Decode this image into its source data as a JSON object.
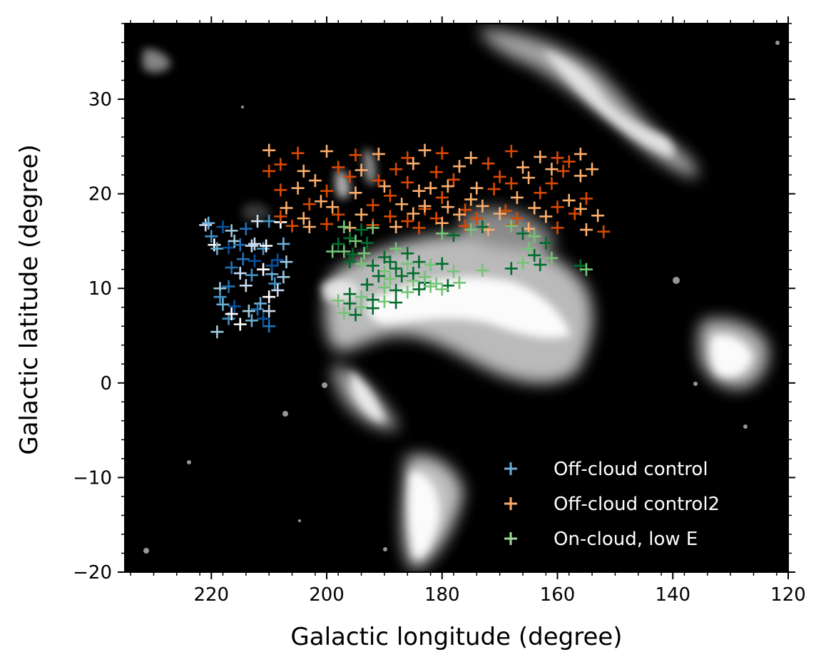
{
  "chart_data": {
    "type": "scatter",
    "title": "",
    "xlabel": "Galactic longitude (degree)",
    "ylabel": "Galactic latitude (degree)",
    "xlim": [
      235,
      120
    ],
    "ylim": [
      -20,
      38
    ],
    "x_inverted": true,
    "xticks": [
      220,
      200,
      180,
      160,
      140,
      120
    ],
    "yticks": [
      -20,
      -10,
      0,
      10,
      20,
      30
    ],
    "grid": false,
    "background": "grayscale dust-map image on black",
    "legend_position": "bottom-right",
    "colors": {
      "off_cloud_control": "#6baed6",
      "off_cloud_control2": "#fd8d3c",
      "on_cloud_low_e": "#74c476"
    },
    "series": [
      {
        "name": "Off-cloud control",
        "marker": "plus",
        "palette": [
          "#c6dbef",
          "#9ecae1",
          "#6baed6",
          "#4292c6",
          "#2171b5",
          "#08519c",
          "#ffffff"
        ],
        "points": [
          [
            221,
            16.7
          ],
          [
            220,
            15.5
          ],
          [
            219.5,
            14.6
          ],
          [
            220.5,
            16.9
          ],
          [
            218,
            16.5
          ],
          [
            216.5,
            16.1
          ],
          [
            214,
            16.3
          ],
          [
            212,
            17.1
          ],
          [
            210,
            17.1
          ],
          [
            208,
            17
          ],
          [
            219,
            14.2
          ],
          [
            217,
            14.3
          ],
          [
            216,
            15
          ],
          [
            215,
            14.6
          ],
          [
            213,
            14.5
          ],
          [
            211,
            14.2
          ],
          [
            210.5,
            14.5
          ],
          [
            207.5,
            14.7
          ],
          [
            208.5,
            13
          ],
          [
            207,
            12.8
          ],
          [
            216.5,
            12.2
          ],
          [
            215,
            11.6
          ],
          [
            213,
            11.4
          ],
          [
            211,
            12
          ],
          [
            209.5,
            11.5
          ],
          [
            212.5,
            12.9
          ],
          [
            218.5,
            10
          ],
          [
            217,
            10.2
          ],
          [
            214,
            10.3
          ],
          [
            209,
            10.5
          ],
          [
            210,
            9.1
          ],
          [
            218,
            8.3
          ],
          [
            216,
            8.1
          ],
          [
            213.5,
            7.6
          ],
          [
            212,
            7.8
          ],
          [
            210,
            7.6
          ],
          [
            217,
            6.8
          ],
          [
            215,
            6.2
          ],
          [
            213,
            6.6
          ],
          [
            211,
            6.8
          ],
          [
            219,
            5.4
          ],
          [
            210,
            6
          ],
          [
            208.5,
            9.8
          ],
          [
            218.5,
            9.1
          ],
          [
            216.5,
            7.3
          ],
          [
            211.5,
            8.4
          ],
          [
            209.5,
            12.4
          ],
          [
            207.5,
            11.2
          ],
          [
            214.5,
            13.1
          ],
          [
            212.5,
            14.7
          ]
        ]
      },
      {
        "name": "Off-cloud control2",
        "marker": "plus",
        "palette": [
          "#fdd0a2",
          "#fdae6b",
          "#fd8d3c",
          "#f16913",
          "#d94801",
          "#ffffff"
        ],
        "points": [
          [
            210,
            24.6
          ],
          [
            205,
            24.3
          ],
          [
            200,
            24.5
          ],
          [
            195,
            24.1
          ],
          [
            191,
            24.2
          ],
          [
            186,
            23.8
          ],
          [
            183,
            24.6
          ],
          [
            180,
            24.3
          ],
          [
            175,
            23.8
          ],
          [
            168,
            24.5
          ],
          [
            163,
            23.9
          ],
          [
            160,
            23.8
          ],
          [
            156,
            24.2
          ],
          [
            208,
            23.1
          ],
          [
            204,
            22.4
          ],
          [
            198,
            22.8
          ],
          [
            194,
            22.5
          ],
          [
            188,
            22.6
          ],
          [
            185,
            23.2
          ],
          [
            181,
            22.3
          ],
          [
            177,
            22.9
          ],
          [
            172,
            23.2
          ],
          [
            166,
            22.8
          ],
          [
            158,
            23.4
          ],
          [
            154,
            22.6
          ],
          [
            210,
            22.4
          ],
          [
            202,
            21.4
          ],
          [
            196,
            21.8
          ],
          [
            190,
            20.8
          ],
          [
            186,
            21.2
          ],
          [
            182,
            20.6
          ],
          [
            178,
            21.5
          ],
          [
            174,
            20.6
          ],
          [
            170,
            21.8
          ],
          [
            165,
            21.7
          ],
          [
            161,
            21.1
          ],
          [
            156,
            21.9
          ],
          [
            208,
            20.4
          ],
          [
            205,
            20.6
          ],
          [
            200,
            20.3
          ],
          [
            195,
            20.1
          ],
          [
            189,
            19.8
          ],
          [
            184,
            20.3
          ],
          [
            180,
            19.6
          ],
          [
            175,
            19.4
          ],
          [
            171,
            20.5
          ],
          [
            167,
            19.6
          ],
          [
            163,
            20.1
          ],
          [
            158,
            19.3
          ],
          [
            155,
            19.5
          ],
          [
            207,
            18.5
          ],
          [
            203,
            18.9
          ],
          [
            199,
            18.6
          ],
          [
            192,
            18.8
          ],
          [
            187,
            18.9
          ],
          [
            183,
            18.4
          ],
          [
            179,
            18.6
          ],
          [
            176,
            18.3
          ],
          [
            173,
            18.7
          ],
          [
            169,
            18.2
          ],
          [
            164,
            18.5
          ],
          [
            160,
            18.6
          ],
          [
            156,
            18.4
          ],
          [
            208,
            17.6
          ],
          [
            204,
            17.4
          ],
          [
            198,
            17.8
          ],
          [
            194,
            17.8
          ],
          [
            189,
            17.6
          ],
          [
            185,
            17.9
          ],
          [
            181,
            17.4
          ],
          [
            177,
            17.8
          ],
          [
            174,
            17.4
          ],
          [
            170,
            17.9
          ],
          [
            167,
            17.4
          ],
          [
            162,
            17.6
          ],
          [
            157,
            17.9
          ],
          [
            153,
            17.7
          ],
          [
            206,
            16.6
          ],
          [
            203,
            16.5
          ],
          [
            200,
            16.8
          ],
          [
            196,
            16.4
          ],
          [
            192,
            16.7
          ],
          [
            188,
            16.5
          ],
          [
            184,
            16.4
          ],
          [
            180,
            16.9
          ],
          [
            176,
            16.6
          ],
          [
            172,
            16.2
          ],
          [
            168,
            16.7
          ],
          [
            165,
            16.3
          ],
          [
            160,
            16.4
          ],
          [
            155,
            16.2
          ],
          [
            152,
            16
          ],
          [
            183,
            18.7
          ],
          [
            186,
            17.1
          ],
          [
            179,
            20.8
          ],
          [
            168,
            21.1
          ],
          [
            161,
            22.6
          ],
          [
            159,
            22.4
          ],
          [
            201,
            19.2
          ],
          [
            191,
            21.4
          ]
        ]
      },
      {
        "name": "On-cloud, low E",
        "marker": "plus",
        "palette": [
          "#c7e9c0",
          "#a1d99b",
          "#74c476",
          "#41ab5d",
          "#238b45",
          "#006d2c"
        ],
        "points": [
          [
            197,
            16.5
          ],
          [
            194,
            16.2
          ],
          [
            192,
            16.4
          ],
          [
            196,
            15.3
          ],
          [
            195,
            15
          ],
          [
            193,
            14.8
          ],
          [
            197,
            13.9
          ],
          [
            195.5,
            13.6
          ],
          [
            193.5,
            13.7
          ],
          [
            196,
            12.8
          ],
          [
            194,
            12.6
          ],
          [
            192,
            12.4
          ],
          [
            190,
            11.8
          ],
          [
            188,
            12.1
          ],
          [
            186,
            12.6
          ],
          [
            184,
            12.8
          ],
          [
            182,
            12.5
          ],
          [
            180,
            12.6
          ],
          [
            178,
            11.8
          ],
          [
            191,
            11.3
          ],
          [
            189,
            11
          ],
          [
            187,
            11.3
          ],
          [
            185,
            10.8
          ],
          [
            183,
            10.6
          ],
          [
            181,
            10.5
          ],
          [
            179,
            10.3
          ],
          [
            177,
            10.6
          ],
          [
            193,
            10.4
          ],
          [
            190,
            10.1
          ],
          [
            188,
            9.8
          ],
          [
            186,
            9.6
          ],
          [
            184,
            9.9
          ],
          [
            182,
            10.2
          ],
          [
            196,
            9.4
          ],
          [
            194,
            9.1
          ],
          [
            192,
            8.8
          ],
          [
            190,
            8.6
          ],
          [
            188,
            8.5
          ],
          [
            198,
            8.7
          ],
          [
            196,
            8.4
          ],
          [
            194,
            8
          ],
          [
            192,
            7.9
          ],
          [
            197,
            7.4
          ],
          [
            195,
            7.2
          ],
          [
            180,
            9.9
          ],
          [
            186,
            13.7
          ],
          [
            180,
            15.8
          ],
          [
            178,
            15.6
          ],
          [
            175,
            16.2
          ],
          [
            173,
            16.5
          ],
          [
            168,
            16.6
          ],
          [
            166,
            15.8
          ],
          [
            164,
            15.5
          ],
          [
            162,
            14.8
          ],
          [
            165,
            14.2
          ],
          [
            164,
            13.5
          ],
          [
            166,
            12.7
          ],
          [
            163,
            12.5
          ],
          [
            161,
            13.2
          ],
          [
            156,
            12.4
          ],
          [
            155,
            12
          ],
          [
            168,
            12.1
          ],
          [
            173,
            11.9
          ],
          [
            190,
            13.3
          ],
          [
            188,
            14.2
          ],
          [
            198,
            14.7
          ],
          [
            199,
            13.9
          ],
          [
            185,
            11.6
          ],
          [
            183,
            11.2
          ],
          [
            189,
            12.8
          ]
        ]
      }
    ]
  }
}
